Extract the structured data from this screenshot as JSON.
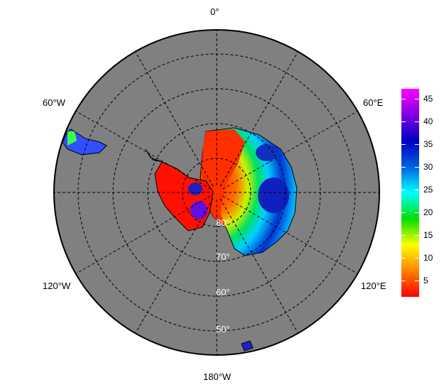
{
  "map": {
    "projection": "south polar stereographic",
    "ocean_color": "#808080",
    "longitude_labels": {
      "top": "0°",
      "upper_left": "60°W",
      "upper_right": "60°E",
      "lower_left": "120°W",
      "lower_right": "120°E",
      "bottom": "180°W"
    },
    "latitude_labels": [
      "80°",
      "70°",
      "60°",
      "50°"
    ]
  },
  "colorbar": {
    "ticks": [
      "5",
      "10",
      "15",
      "20",
      "25",
      "30",
      "35",
      "40",
      "45"
    ],
    "range": [
      1.4,
      47.2
    ],
    "colors": [
      "#ff0000",
      "#ff8000",
      "#ffff00",
      "#00e000",
      "#00ffff",
      "#0060e0",
      "#0000c0",
      "#8000e0",
      "#ff00ff"
    ]
  }
}
